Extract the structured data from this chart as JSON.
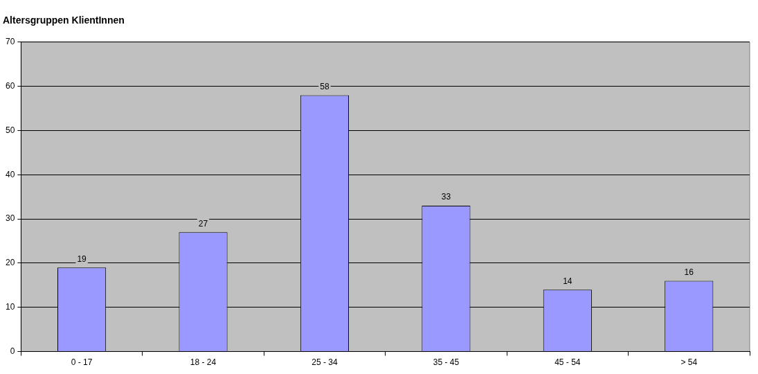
{
  "chart_data": {
    "type": "bar",
    "title": "Altersgruppen KlientInnen",
    "categories": [
      "0 - 17",
      "18 - 24",
      "25 - 34",
      "35 - 45",
      "45 - 54",
      "> 54"
    ],
    "values": [
      19,
      27,
      58,
      33,
      14,
      16
    ],
    "color": "#9999ff",
    "ylim": [
      0,
      70
    ],
    "yticks": [
      0,
      10,
      20,
      30,
      40,
      50,
      60,
      70
    ],
    "grid": "y",
    "data_labels": true
  }
}
